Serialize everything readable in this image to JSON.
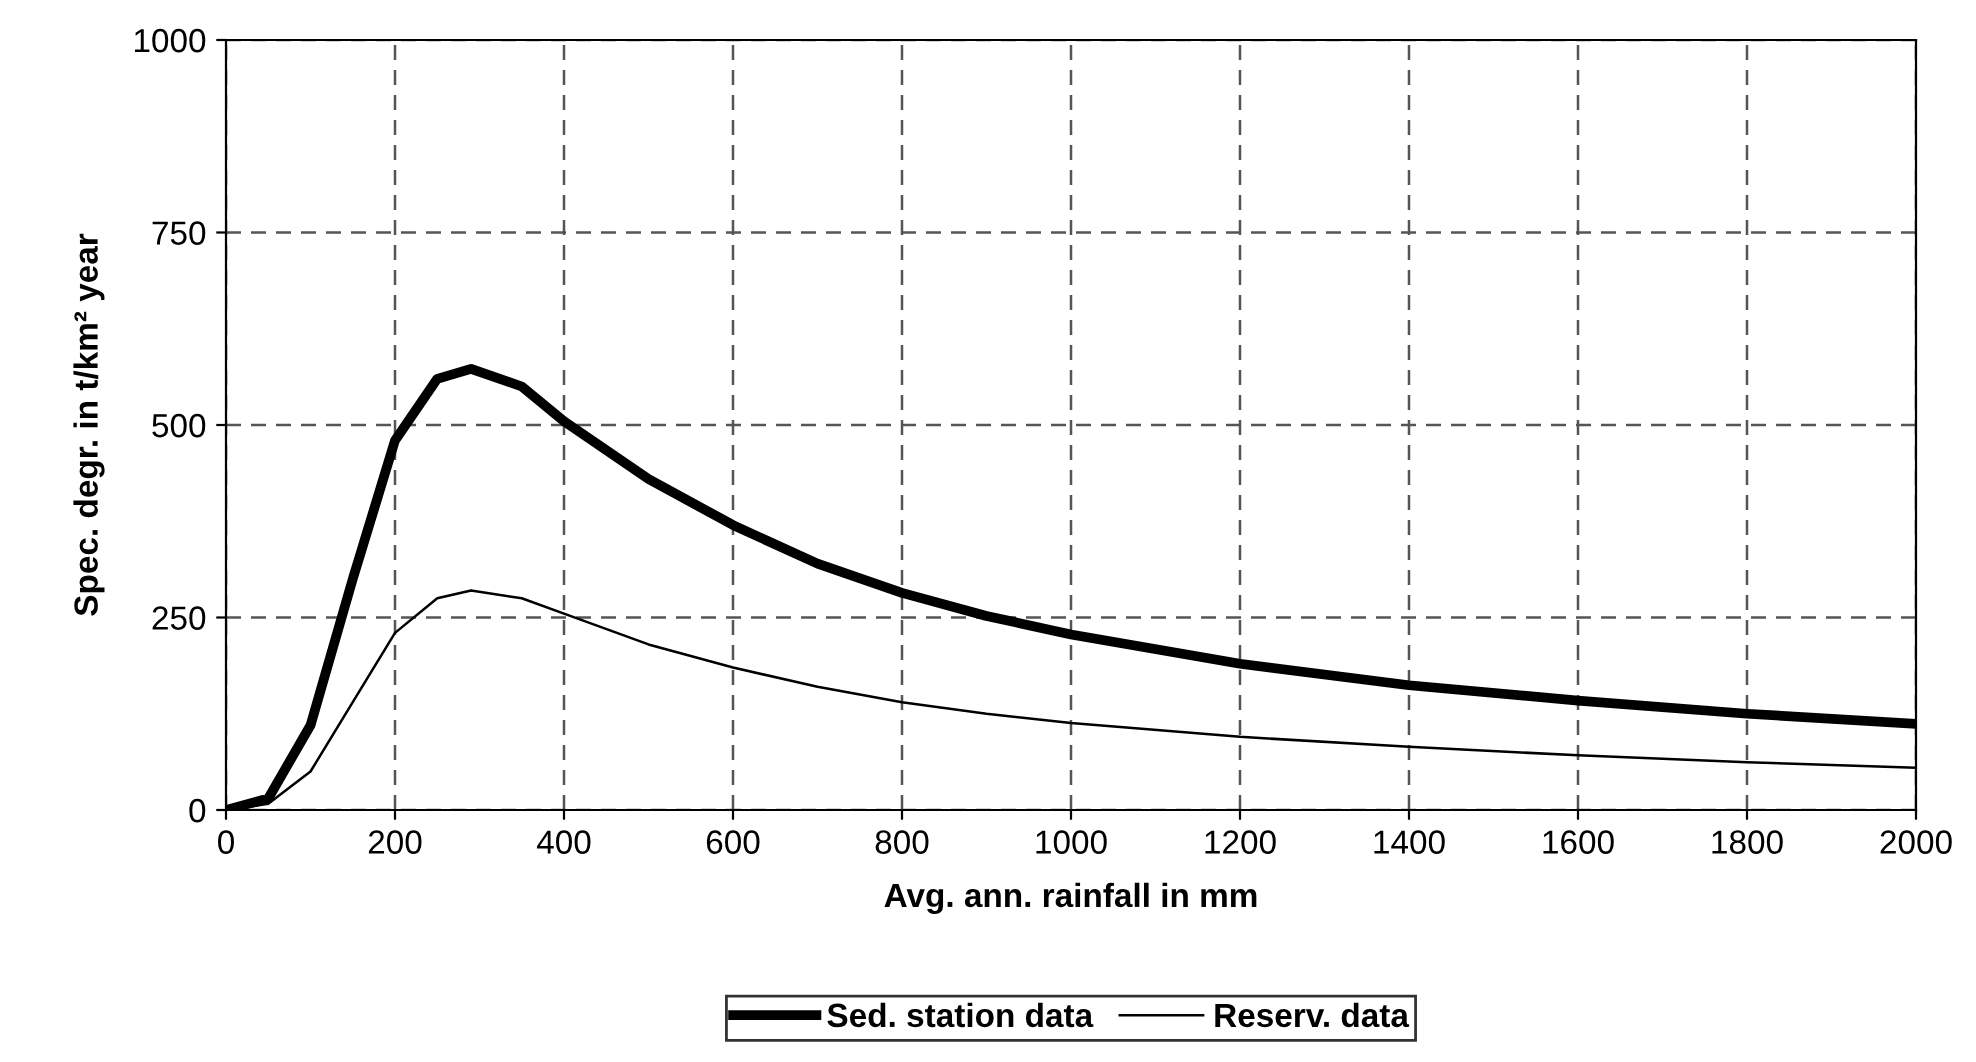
{
  "chart_data": {
    "type": "line",
    "xlabel": "Avg. ann. rainfall in mm",
    "ylabel": "Spec. degr. in t/km² year",
    "x": [
      0,
      50,
      100,
      150,
      200,
      250,
      290,
      350,
      400,
      500,
      600,
      700,
      800,
      900,
      1000,
      1200,
      1400,
      1600,
      1800,
      2000
    ],
    "series": [
      {
        "name": "Sed. station data",
        "color": "#000000",
        "line_style": "solid",
        "values": [
          0,
          15,
          110,
          300,
          480,
          560,
          573,
          550,
          505,
          430,
          370,
          320,
          282,
          252,
          228,
          190,
          162,
          142,
          125,
          112
        ]
      },
      {
        "name": "Reserv. data",
        "color": "#000000",
        "line_style": "solid",
        "values": [
          0,
          8,
          50,
          140,
          230,
          275,
          285,
          275,
          255,
          215,
          185,
          160,
          140,
          125,
          113,
          95,
          82,
          71,
          62,
          55
        ]
      }
    ],
    "xlim": [
      0,
      2000
    ],
    "xticks": [
      0,
      200,
      400,
      600,
      800,
      1000,
      1200,
      1400,
      1600,
      1800,
      2000
    ],
    "ylim": [
      0,
      1000
    ],
    "yticks": [
      0,
      250,
      500,
      750,
      1000
    ],
    "grid": true,
    "legend": "bottom",
    "marker": "none"
  }
}
